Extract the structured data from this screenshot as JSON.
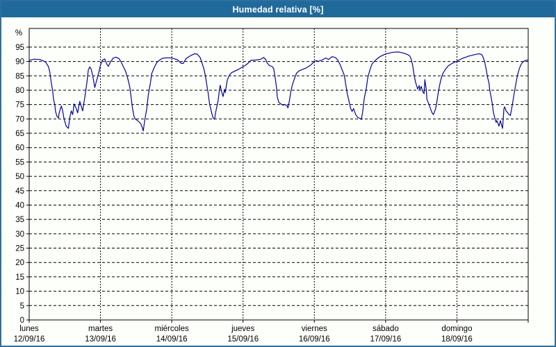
{
  "window": {
    "title": "Humedad relativa [%]"
  },
  "colors": {
    "title_bg": "#1f6a9a",
    "title_text": "#ffffff",
    "panel_border": "#2e6f9f",
    "panel_bg": "#fdfffb",
    "axis": "#000000",
    "grid": "#000000",
    "label": "#000000",
    "line": "#0000a0"
  },
  "chart_data": {
    "type": "line",
    "title": "Humedad relativa [%]",
    "xlabel": "",
    "ylabel": "%",
    "ylim": [
      0,
      101.5
    ],
    "yticks": [
      0,
      5,
      10,
      15,
      20,
      25,
      30,
      35,
      40,
      45,
      50,
      55,
      60,
      65,
      70,
      75,
      80,
      85,
      90,
      95
    ],
    "grid": true,
    "legend": "none",
    "x_range_days": [
      0,
      7
    ],
    "x_categories": [
      {
        "day": "lunes",
        "date": "12/09/16"
      },
      {
        "day": "martes",
        "date": "13/09/16"
      },
      {
        "day": "miércoles",
        "date": "14/09/16"
      },
      {
        "day": "jueves",
        "date": "15/09/16"
      },
      {
        "day": "viernes",
        "date": "16/09/16"
      },
      {
        "day": "sábado",
        "date": "17/09/16"
      },
      {
        "day": "domingo",
        "date": "18/09/16"
      }
    ],
    "series": [
      {
        "name": "Humedad relativa [%]",
        "color": "#0000a0",
        "points": [
          [
            0.0,
            90.4
          ],
          [
            0.07,
            90.8
          ],
          [
            0.15,
            90.7
          ],
          [
            0.2,
            90.2
          ],
          [
            0.23,
            89.8
          ],
          [
            0.25,
            89.0
          ],
          [
            0.27,
            88.2
          ],
          [
            0.29,
            86.3
          ],
          [
            0.31,
            82.5
          ],
          [
            0.33,
            79.8
          ],
          [
            0.34,
            77.1
          ],
          [
            0.36,
            74.8
          ],
          [
            0.37,
            72.5
          ],
          [
            0.39,
            70.9
          ],
          [
            0.41,
            70.3
          ],
          [
            0.42,
            72.1
          ],
          [
            0.45,
            74.5
          ],
          [
            0.47,
            72.8
          ],
          [
            0.49,
            69.8
          ],
          [
            0.52,
            67.5
          ],
          [
            0.55,
            66.7
          ],
          [
            0.57,
            70.5
          ],
          [
            0.59,
            72.8
          ],
          [
            0.61,
            71.5
          ],
          [
            0.63,
            75.2
          ],
          [
            0.66,
            73.6
          ],
          [
            0.68,
            72.1
          ],
          [
            0.71,
            76.1
          ],
          [
            0.73,
            74.4
          ],
          [
            0.75,
            72.8
          ],
          [
            0.78,
            77.5
          ],
          [
            0.81,
            82.8
          ],
          [
            0.83,
            87.1
          ],
          [
            0.85,
            88.1
          ],
          [
            0.87,
            87.3
          ],
          [
            0.89,
            85.2
          ],
          [
            0.92,
            80.9
          ],
          [
            0.94,
            82.8
          ],
          [
            0.97,
            85.5
          ],
          [
            1.0,
            88.8
          ],
          [
            1.03,
            90.5
          ],
          [
            1.06,
            90.9
          ],
          [
            1.09,
            89.0
          ],
          [
            1.11,
            88.3
          ],
          [
            1.14,
            89.8
          ],
          [
            1.18,
            91.2
          ],
          [
            1.22,
            91.5
          ],
          [
            1.26,
            91.0
          ],
          [
            1.29,
            89.8
          ],
          [
            1.32,
            88.2
          ],
          [
            1.35,
            86.7
          ],
          [
            1.38,
            84.4
          ],
          [
            1.41,
            81.3
          ],
          [
            1.43,
            77.5
          ],
          [
            1.45,
            73.6
          ],
          [
            1.47,
            70.9
          ],
          [
            1.49,
            69.9
          ],
          [
            1.52,
            69.4
          ],
          [
            1.55,
            68.8
          ],
          [
            1.57,
            68.1
          ],
          [
            1.59,
            66.7
          ],
          [
            1.6,
            65.8
          ],
          [
            1.62,
            69.4
          ],
          [
            1.65,
            73.6
          ],
          [
            1.67,
            78.2
          ],
          [
            1.7,
            82.5
          ],
          [
            1.72,
            85.9
          ],
          [
            1.76,
            88.2
          ],
          [
            1.79,
            89.6
          ],
          [
            1.83,
            90.5
          ],
          [
            1.87,
            91.1
          ],
          [
            1.93,
            91.3
          ],
          [
            2.0,
            91.2
          ],
          [
            2.03,
            91.0
          ],
          [
            2.08,
            90.6
          ],
          [
            2.13,
            89.4
          ],
          [
            2.16,
            89.3
          ],
          [
            2.2,
            91.0
          ],
          [
            2.27,
            92.1
          ],
          [
            2.32,
            92.7
          ],
          [
            2.36,
            92.5
          ],
          [
            2.4,
            91.3
          ],
          [
            2.42,
            89.8
          ],
          [
            2.45,
            87.5
          ],
          [
            2.47,
            85.2
          ],
          [
            2.49,
            82.1
          ],
          [
            2.51,
            79.0
          ],
          [
            2.53,
            75.3
          ],
          [
            2.56,
            72.1
          ],
          [
            2.58,
            70.4
          ],
          [
            2.6,
            69.9
          ],
          [
            2.62,
            72.8
          ],
          [
            2.65,
            76.3
          ],
          [
            2.67,
            80.5
          ],
          [
            2.68,
            81.7
          ],
          [
            2.7,
            79.4
          ],
          [
            2.72,
            77.8
          ],
          [
            2.74,
            80.3
          ],
          [
            2.75,
            79.2
          ],
          [
            2.78,
            83.6
          ],
          [
            2.81,
            85.3
          ],
          [
            2.84,
            86.1
          ],
          [
            2.89,
            86.7
          ],
          [
            2.94,
            87.3
          ],
          [
            3.0,
            88.2
          ],
          [
            3.03,
            88.6
          ],
          [
            3.07,
            89.4
          ],
          [
            3.11,
            90.4
          ],
          [
            3.18,
            90.5
          ],
          [
            3.25,
            90.8
          ],
          [
            3.29,
            91.4
          ],
          [
            3.32,
            90.6
          ],
          [
            3.34,
            89.4
          ],
          [
            3.37,
            88.6
          ],
          [
            3.41,
            88.2
          ],
          [
            3.43,
            87.5
          ],
          [
            3.45,
            84.4
          ],
          [
            3.47,
            80.9
          ],
          [
            3.48,
            77.8
          ],
          [
            3.5,
            75.8
          ],
          [
            3.53,
            75.2
          ],
          [
            3.56,
            74.8
          ],
          [
            3.59,
            75.0
          ],
          [
            3.62,
            74.5
          ],
          [
            3.63,
            73.8
          ],
          [
            3.65,
            76.3
          ],
          [
            3.67,
            79.4
          ],
          [
            3.69,
            81.7
          ],
          [
            3.72,
            84.0
          ],
          [
            3.75,
            85.9
          ],
          [
            3.79,
            86.8
          ],
          [
            3.84,
            87.3
          ],
          [
            3.89,
            87.8
          ],
          [
            3.95,
            88.8
          ],
          [
            4.0,
            90.0
          ],
          [
            4.03,
            90.3
          ],
          [
            4.05,
            90.0
          ],
          [
            4.1,
            90.4
          ],
          [
            4.16,
            91.2
          ],
          [
            4.2,
            90.7
          ],
          [
            4.25,
            91.7
          ],
          [
            4.3,
            91.3
          ],
          [
            4.33,
            90.4
          ],
          [
            4.36,
            89.0
          ],
          [
            4.39,
            87.1
          ],
          [
            4.42,
            85.2
          ],
          [
            4.44,
            82.1
          ],
          [
            4.46,
            79.0
          ],
          [
            4.49,
            75.8
          ],
          [
            4.51,
            73.6
          ],
          [
            4.53,
            72.6
          ],
          [
            4.55,
            73.6
          ],
          [
            4.58,
            71.5
          ],
          [
            4.61,
            70.5
          ],
          [
            4.64,
            70.2
          ],
          [
            4.66,
            69.8
          ],
          [
            4.68,
            72.8
          ],
          [
            4.7,
            77.1
          ],
          [
            4.73,
            80.9
          ],
          [
            4.75,
            84.4
          ],
          [
            4.78,
            87.1
          ],
          [
            4.81,
            89.2
          ],
          [
            4.86,
            90.5
          ],
          [
            4.92,
            91.7
          ],
          [
            4.98,
            92.4
          ],
          [
            5.0,
            92.6
          ],
          [
            5.05,
            92.9
          ],
          [
            5.1,
            93.2
          ],
          [
            5.18,
            93.3
          ],
          [
            5.24,
            93.0
          ],
          [
            5.31,
            92.4
          ],
          [
            5.34,
            91.9
          ],
          [
            5.36,
            90.7
          ],
          [
            5.38,
            88.6
          ],
          [
            5.4,
            85.2
          ],
          [
            5.42,
            82.8
          ],
          [
            5.44,
            81.2
          ],
          [
            5.45,
            80.4
          ],
          [
            5.47,
            81.6
          ],
          [
            5.48,
            80.2
          ],
          [
            5.5,
            81.3
          ],
          [
            5.52,
            79.5
          ],
          [
            5.54,
            78.8
          ],
          [
            5.55,
            83.7
          ],
          [
            5.57,
            80.2
          ],
          [
            5.58,
            76.8
          ],
          [
            5.61,
            75.0
          ],
          [
            5.63,
            73.5
          ],
          [
            5.65,
            72.2
          ],
          [
            5.67,
            71.5
          ],
          [
            5.7,
            73.5
          ],
          [
            5.72,
            76.1
          ],
          [
            5.74,
            79.5
          ],
          [
            5.77,
            83.2
          ],
          [
            5.8,
            85.7
          ],
          [
            5.84,
            87.3
          ],
          [
            5.88,
            88.5
          ],
          [
            5.93,
            89.3
          ],
          [
            6.0,
            90.1
          ],
          [
            6.03,
            90.5
          ],
          [
            6.07,
            91.0
          ],
          [
            6.17,
            91.9
          ],
          [
            6.25,
            92.4
          ],
          [
            6.31,
            92.7
          ],
          [
            6.35,
            92.4
          ],
          [
            6.37,
            91.3
          ],
          [
            6.39,
            89.8
          ],
          [
            6.41,
            87.3
          ],
          [
            6.43,
            84.5
          ],
          [
            6.45,
            82.5
          ],
          [
            6.46,
            80.2
          ],
          [
            6.48,
            77.5
          ],
          [
            6.5,
            74.8
          ],
          [
            6.51,
            72.5
          ],
          [
            6.53,
            70.5
          ],
          [
            6.55,
            68.8
          ],
          [
            6.56,
            69.4
          ],
          [
            6.58,
            68.2
          ],
          [
            6.59,
            67.5
          ],
          [
            6.61,
            69.4
          ],
          [
            6.63,
            67.6
          ],
          [
            6.64,
            66.7
          ],
          [
            6.66,
            73.6
          ],
          [
            6.67,
            74.2
          ],
          [
            6.69,
            72.8
          ],
          [
            6.71,
            72.2
          ],
          [
            6.73,
            71.5
          ],
          [
            6.75,
            71.2
          ],
          [
            6.77,
            73.8
          ],
          [
            6.79,
            76.9
          ],
          [
            6.81,
            79.8
          ],
          [
            6.83,
            82.7
          ],
          [
            6.85,
            85.2
          ],
          [
            6.87,
            87.1
          ],
          [
            6.89,
            88.4
          ],
          [
            6.91,
            89.4
          ],
          [
            6.94,
            90.1
          ],
          [
            6.97,
            90.4
          ],
          [
            7.0,
            90.5
          ]
        ]
      }
    ]
  }
}
